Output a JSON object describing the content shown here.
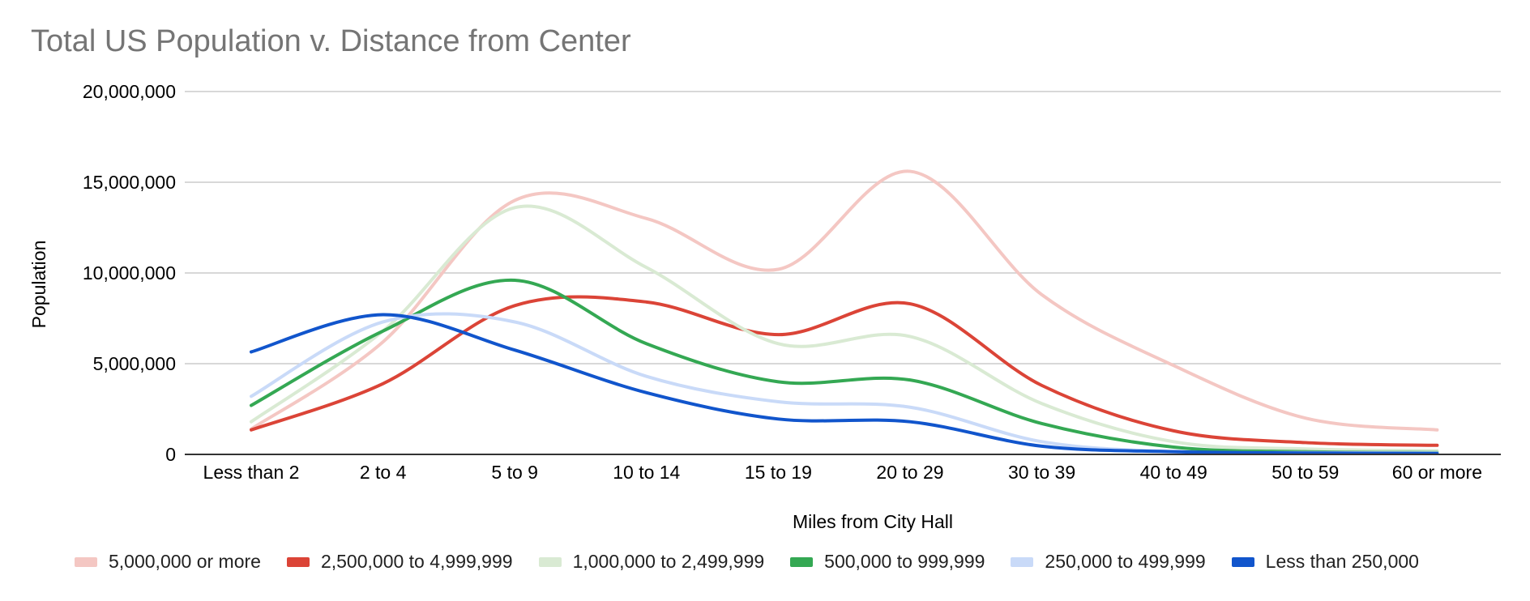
{
  "chart_data": {
    "type": "line",
    "title": "Total US Population v. Distance from Center",
    "xlabel": "Miles from City Hall",
    "ylabel": "Population",
    "categories": [
      "Less than 2",
      "2 to 4",
      "5 to 9",
      "10 to 14",
      "15 to 19",
      "20 to 29",
      "30 to 39",
      "40 to 49",
      "50 to 59",
      "60 or more"
    ],
    "yticks": [
      "0",
      "5,000,000",
      "10,000,000",
      "15,000,000",
      "20,000,000"
    ],
    "ylim": [
      0,
      20000000
    ],
    "grid": true,
    "legend_position": "bottom",
    "series": [
      {
        "name": "5,000,000 or more",
        "color": "#f4c7c3",
        "values": [
          1400000,
          6200000,
          14000000,
          13000000,
          10200000,
          15600000,
          8800000,
          4900000,
          2000000,
          1350000
        ]
      },
      {
        "name": "2,500,000 to 4,999,999",
        "color": "#db4437",
        "values": [
          1350000,
          3900000,
          8200000,
          8400000,
          6600000,
          8300000,
          3800000,
          1300000,
          650000,
          500000
        ]
      },
      {
        "name": "1,000,000 to 2,499,999",
        "color": "#d9ead3",
        "values": [
          1800000,
          6800000,
          13600000,
          10300000,
          6100000,
          6500000,
          2800000,
          700000,
          300000,
          200000
        ]
      },
      {
        "name": "500,000 to 999,999",
        "color": "#34a853",
        "values": [
          2700000,
          6800000,
          9600000,
          6100000,
          4000000,
          4100000,
          1700000,
          400000,
          150000,
          100000
        ]
      },
      {
        "name": "250,000 to 499,999",
        "color": "#c9daf8",
        "values": [
          3200000,
          7300000,
          7300000,
          4300000,
          2900000,
          2600000,
          700000,
          150000,
          100000,
          80000
        ]
      },
      {
        "name": "Less than 250,000",
        "color": "#1155cc",
        "values": [
          5650000,
          7700000,
          5750000,
          3400000,
          1950000,
          1800000,
          450000,
          150000,
          80000,
          50000
        ]
      }
    ]
  }
}
